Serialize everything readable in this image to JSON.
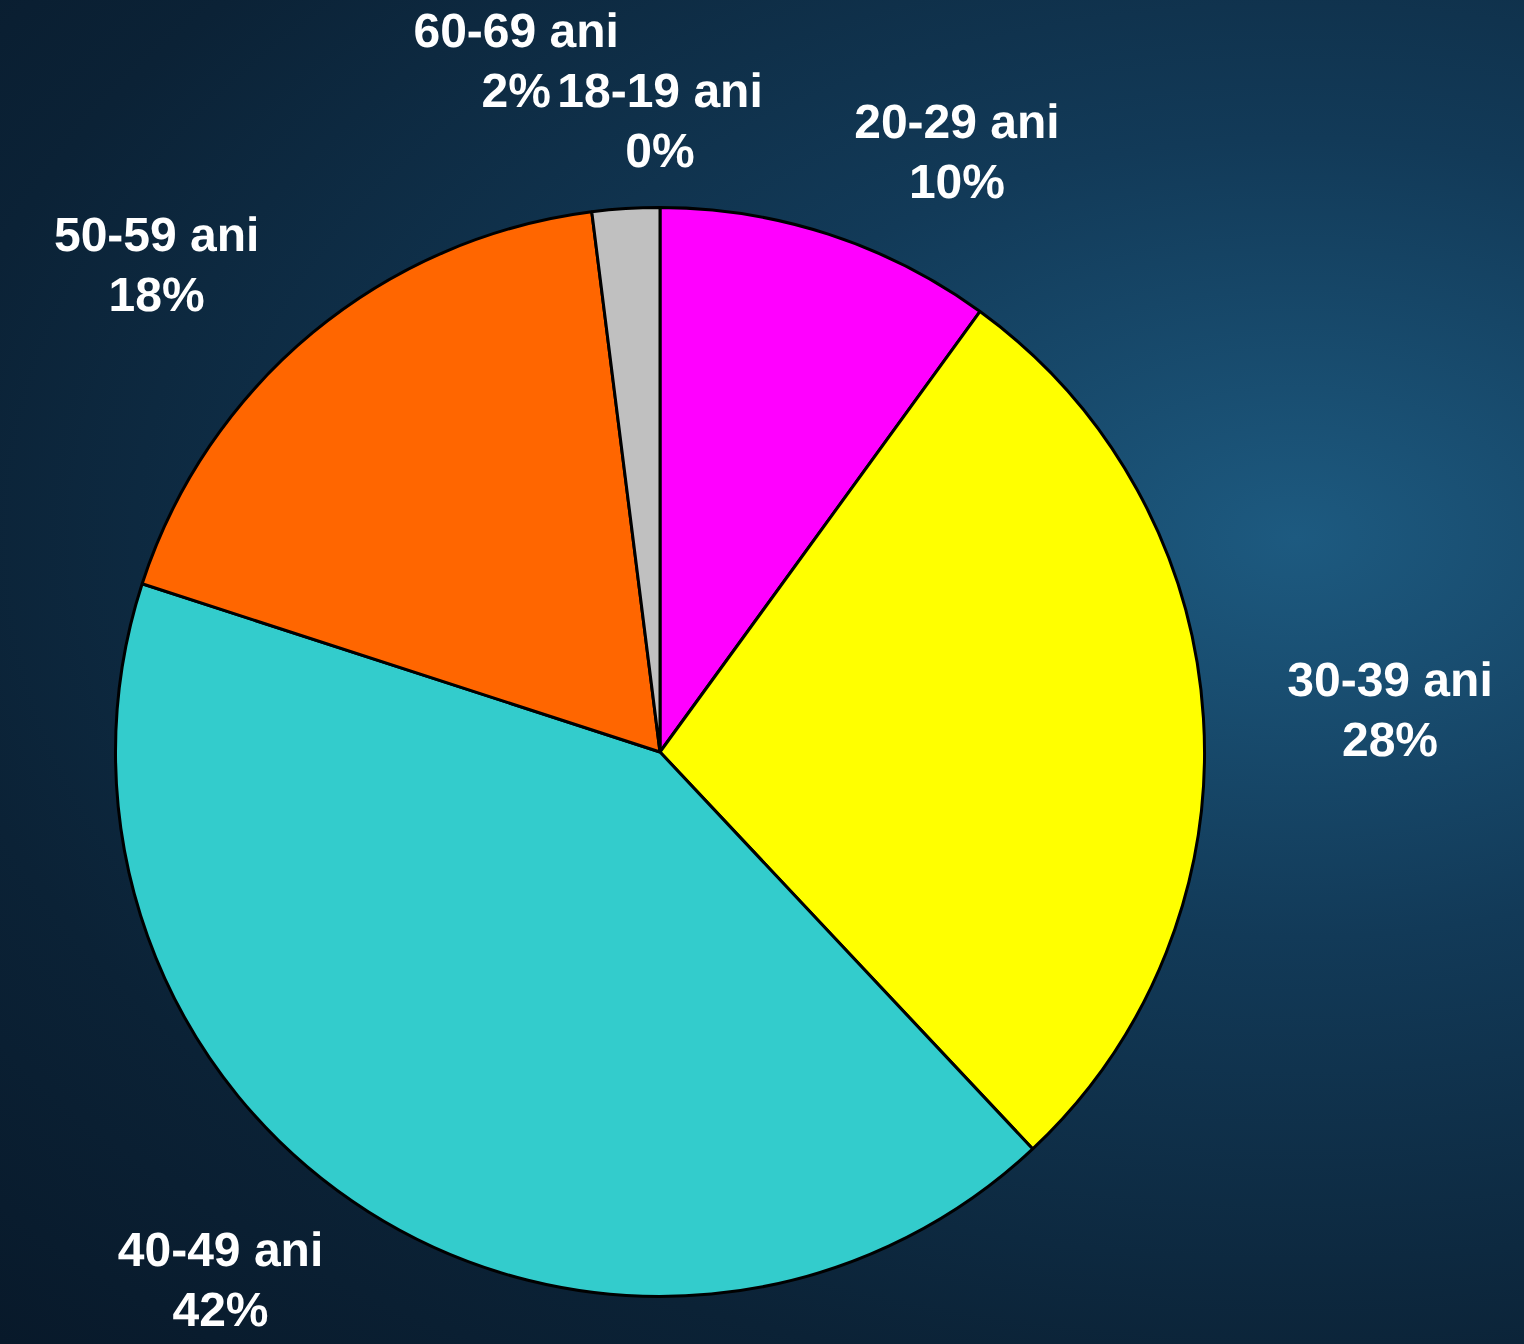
{
  "chart_data": {
    "type": "pie",
    "categories": [
      "18-19 ani",
      "20-29 ani",
      "30-39 ani",
      "40-49 ani",
      "50-59 ani",
      "60-69 ani"
    ],
    "values": [
      0,
      10,
      28,
      42,
      18,
      2
    ],
    "colors": [
      "#9999ff",
      "#ff00ff",
      "#ffff00",
      "#33cccc",
      "#ff6600",
      "#c0c0c0"
    ],
    "value_labels": [
      "0%",
      "10%",
      "28%",
      "42%",
      "18%",
      "2%"
    ],
    "legend": false
  }
}
